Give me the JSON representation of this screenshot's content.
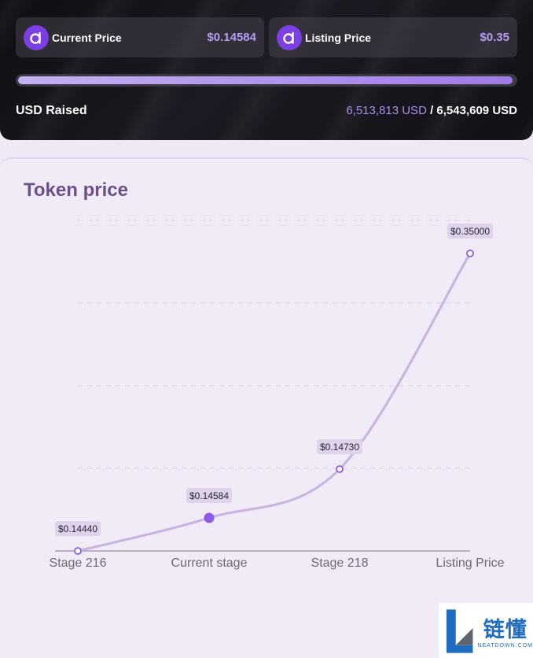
{
  "presale": {
    "current_price": {
      "label": "Current Price",
      "value": "$0.14584"
    },
    "listing_price": {
      "label": "Listing Price",
      "value": "$0.35"
    },
    "progress": 0.9954,
    "raised_label": "USD Raised",
    "raised_current": "6,513,813 USD",
    "raised_separator": " / ",
    "raised_target": "6,543,609 USD"
  },
  "chart_title": "Token price",
  "colors": {
    "accent": "#7b3fe4",
    "line": "#c7b3e0",
    "title": "#6d5088",
    "label_bg": "#ded3ea"
  },
  "chart_data": {
    "type": "line",
    "title": "Token price",
    "categories": [
      "Stage 216",
      "Current stage",
      "Stage 218",
      "Listing Price"
    ],
    "values": [
      0.1444,
      0.14584,
      0.1473,
      0.35
    ],
    "value_labels": [
      "$0.14440",
      "$0.14584",
      "$0.14730",
      "$0.35000"
    ],
    "highlight_index": 1,
    "xlabel": "",
    "ylabel": "",
    "grid": true,
    "y_axis_labels": false
  },
  "watermark": {
    "cn": "链懂",
    "en": "NEATDOWN.COM"
  }
}
